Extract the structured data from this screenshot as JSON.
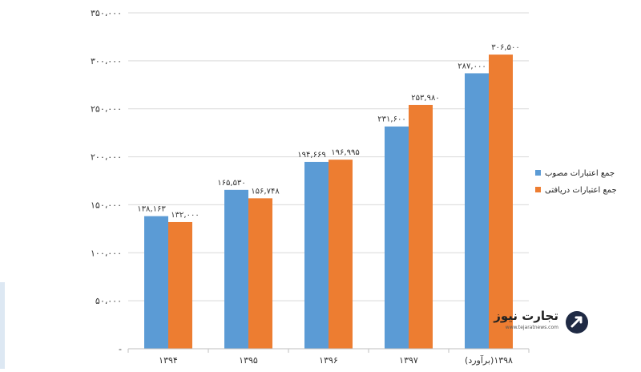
{
  "chart_data": {
    "type": "bar",
    "categories": [
      "۱۳۹۴",
      "۱۳۹۵",
      "۱۳۹۶",
      "۱۳۹۷",
      "(برآورد)۱۳۹۸"
    ],
    "series": [
      {
        "name": "جمع اعتبارات مصوب",
        "color": "#5b9bd5",
        "values": [
          138163,
          165530,
          194669,
          231600,
          287000
        ],
        "labels": [
          "۱۳۸,۱۶۳",
          "۱۶۵,۵۳۰",
          "۱۹۴,۶۶۹",
          "۲۳۱,۶۰۰",
          "۲۸۷,۰۰۰"
        ]
      },
      {
        "name": "جمع اعتبارات دریافتی",
        "color": "#ed7d31",
        "values": [
          132000,
          156748,
          196995,
          253980,
          306500
        ],
        "labels": [
          "۱۳۲,۰۰۰",
          "۱۵۶,۷۴۸",
          "۱۹۶,۹۹۵",
          "۲۵۳,۹۸۰",
          "۳۰۶,۵۰۰"
        ]
      }
    ],
    "ylim": [
      0,
      350000
    ],
    "yticks": [
      0,
      50000,
      100000,
      150000,
      200000,
      250000,
      300000,
      350000
    ],
    "ytick_labels": [
      "-",
      "۵۰،۰۰۰",
      "۱۰۰،۰۰۰",
      "۱۵۰،۰۰۰",
      "۲۰۰،۰۰۰",
      "۲۵۰،۰۰۰",
      "۳۰۰،۰۰۰",
      "۳۵۰،۰۰۰"
    ],
    "grid": "horizontal",
    "legend_position": "right"
  },
  "watermark": {
    "brand": "تجارت نیوز",
    "url": "www.tejaratnews.com",
    "logo_icon": "tejaratnews-logo-icon"
  }
}
